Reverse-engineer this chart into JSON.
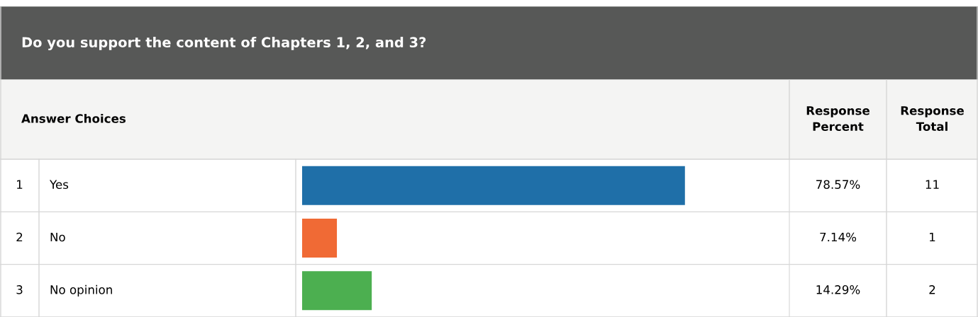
{
  "chart_data": {
    "type": "bar",
    "orientation": "horizontal",
    "title": "Do you support the content of Chapters 1, 2, and 3?",
    "categories": [
      "Yes",
      "No",
      "No opinion"
    ],
    "values": [
      78.57,
      7.14,
      14.29
    ],
    "colors": [
      "#1f6fa8",
      "#f06a35",
      "#4caf50"
    ],
    "value_labels": [
      "78.57%",
      "7.14%",
      "14.29%"
    ],
    "xlim": [
      0,
      100
    ],
    "tick_labels": false,
    "annotations": [
      "Answer Choices",
      "Response Percent",
      "Response Total",
      "1",
      "2",
      "3",
      "11",
      "1",
      "2"
    ]
  }
}
